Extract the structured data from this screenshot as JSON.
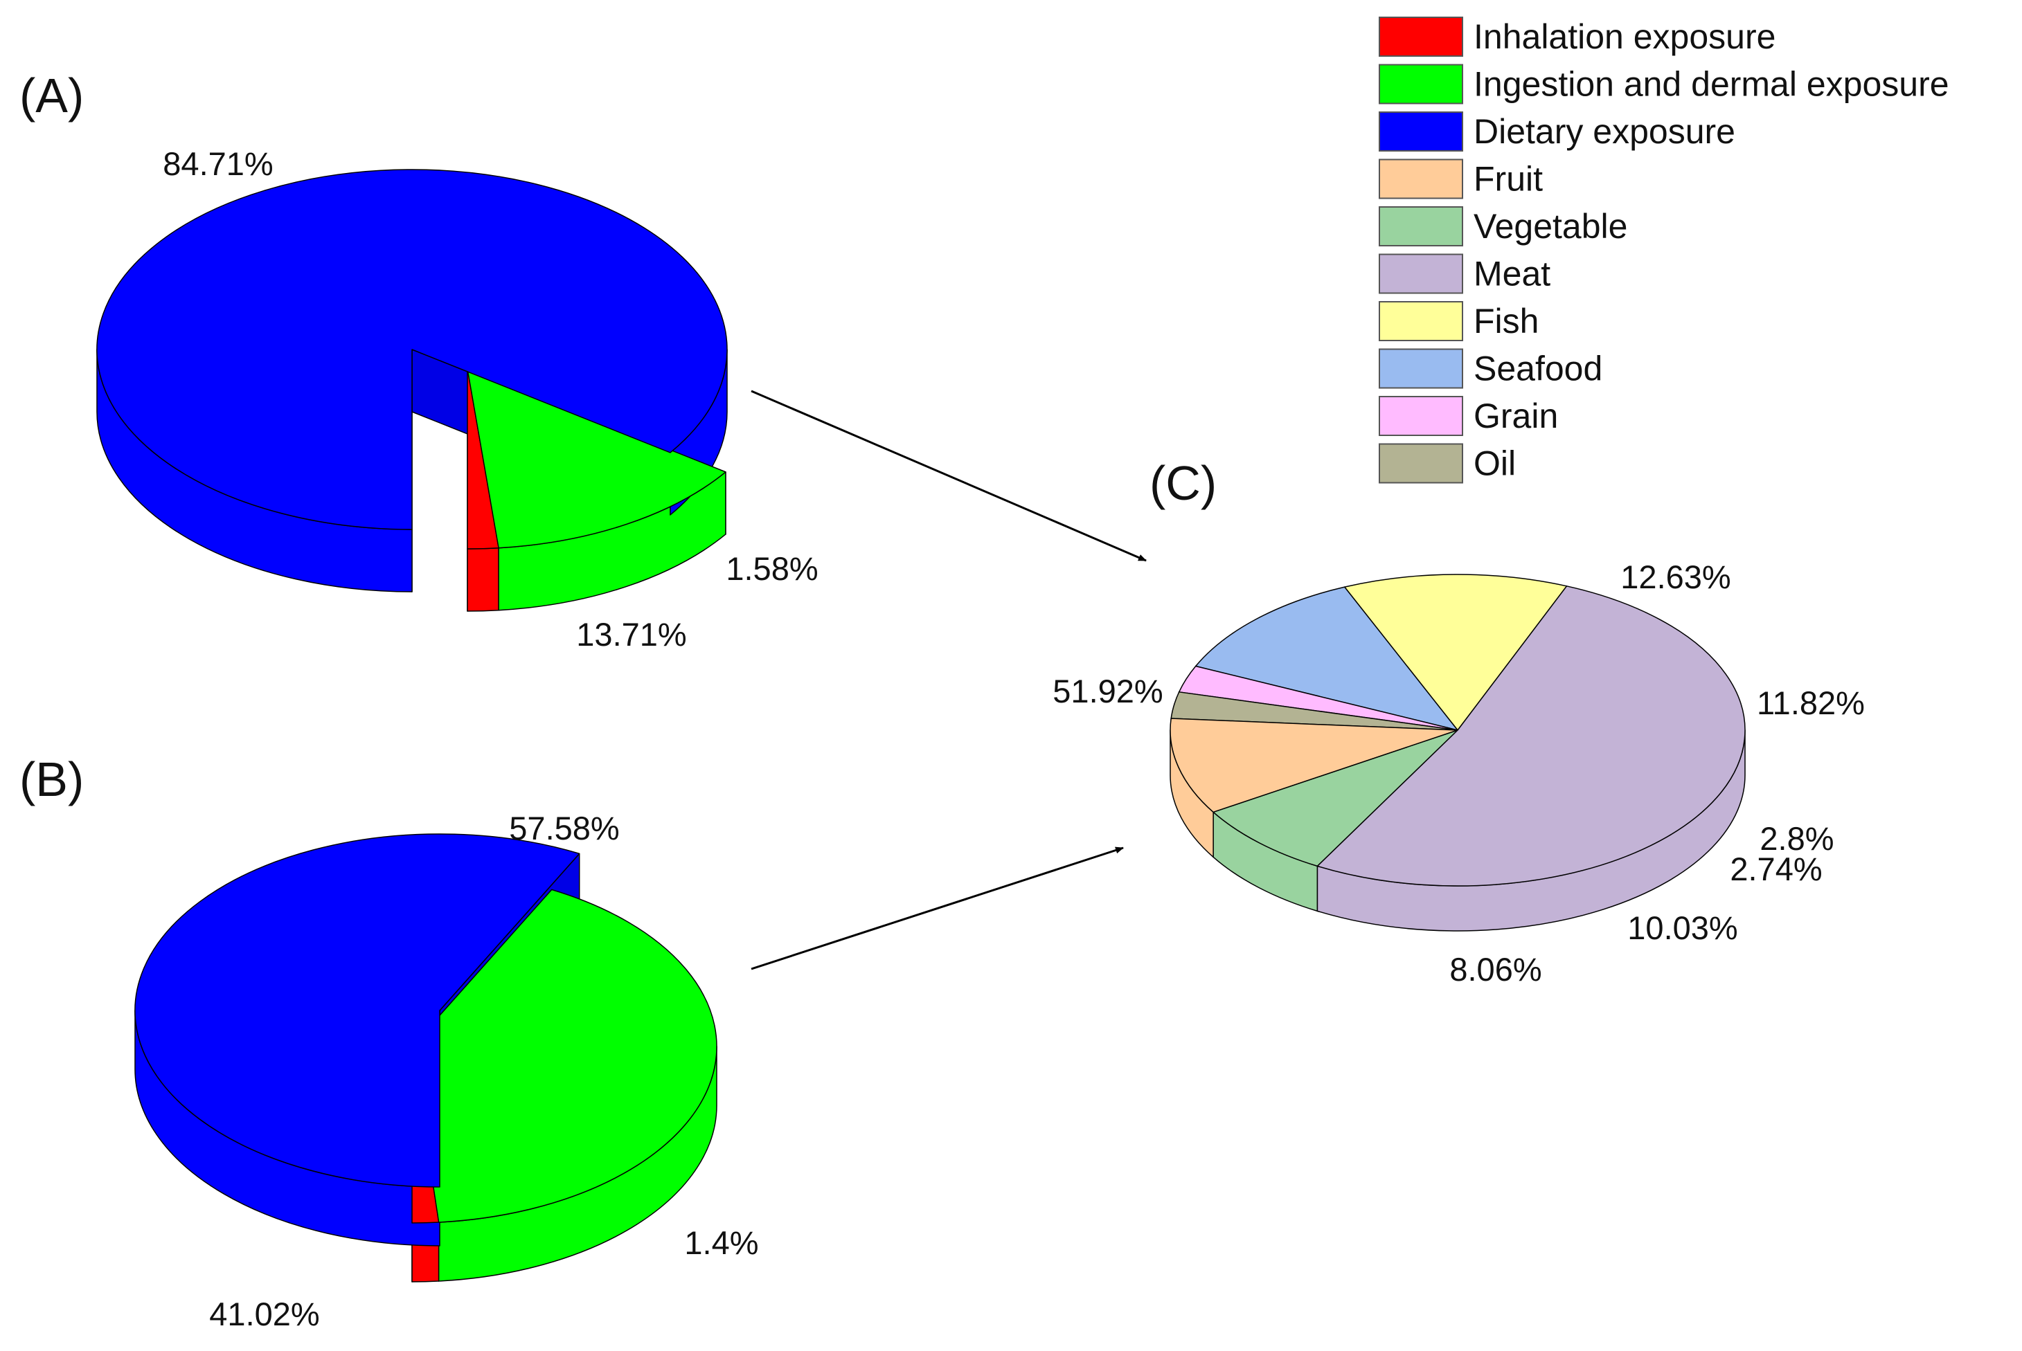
{
  "chart_data": [
    {
      "type": "pie",
      "panel": "(A)",
      "slices": [
        {
          "name": "Inhalation exposure",
          "value": 1.58,
          "label": "1.58%",
          "color": "#ff0000",
          "exploded": true
        },
        {
          "name": "Ingestion and dermal exposure",
          "value": 13.71,
          "label": "13.71%",
          "color": "#00ff00",
          "exploded": true
        },
        {
          "name": "Dietary exposure",
          "value": 84.71,
          "label": "84.71%",
          "color": "#0000ff",
          "exploded": false
        }
      ]
    },
    {
      "type": "pie",
      "panel": "(B)",
      "slices": [
        {
          "name": "Inhalation exposure",
          "value": 1.4,
          "label": "1.4%",
          "color": "#ff0000",
          "exploded": true
        },
        {
          "name": "Ingestion and dermal exposure",
          "value": 41.02,
          "label": "41.02%",
          "color": "#00ff00",
          "exploded": true
        },
        {
          "name": "Dietary exposure",
          "value": 57.58,
          "label": "57.58%",
          "color": "#0000ff",
          "exploded": false
        }
      ]
    },
    {
      "type": "pie",
      "panel": "(C)",
      "slices": [
        {
          "name": "Fish",
          "value": 12.63,
          "label": "12.63%",
          "color": "#ffff99"
        },
        {
          "name": "Seafood",
          "value": 11.82,
          "label": "11.82%",
          "color": "#99bbf0"
        },
        {
          "name": "Grain",
          "value": 2.8,
          "label": "2.8%",
          "color": "#ffbbff"
        },
        {
          "name": "Oil",
          "value": 2.74,
          "label": "2.74%",
          "color": "#b3b393"
        },
        {
          "name": "Fruit",
          "value": 10.03,
          "label": "10.03%",
          "color": "#ffcc99"
        },
        {
          "name": "Vegetable",
          "value": 8.06,
          "label": "8.06%",
          "color": "#99d39f"
        },
        {
          "name": "Meat",
          "value": 51.92,
          "label": "51.92%",
          "color": "#c3b3d6"
        }
      ]
    }
  ],
  "legend": [
    {
      "label": "Inhalation exposure",
      "color": "#ff0000"
    },
    {
      "label": "Ingestion and dermal exposure",
      "color": "#00ff00"
    },
    {
      "label": "Dietary exposure",
      "color": "#0000ff"
    },
    {
      "label": "Fruit",
      "color": "#ffcc99"
    },
    {
      "label": "Vegetable",
      "color": "#99d39f"
    },
    {
      "label": "Meat",
      "color": "#c3b3d6"
    },
    {
      "label": "Fish",
      "color": "#ffff99"
    },
    {
      "label": "Seafood",
      "color": "#99bbf0"
    },
    {
      "label": "Grain",
      "color": "#ffbbff"
    },
    {
      "label": "Oil",
      "color": "#b3b393"
    }
  ]
}
